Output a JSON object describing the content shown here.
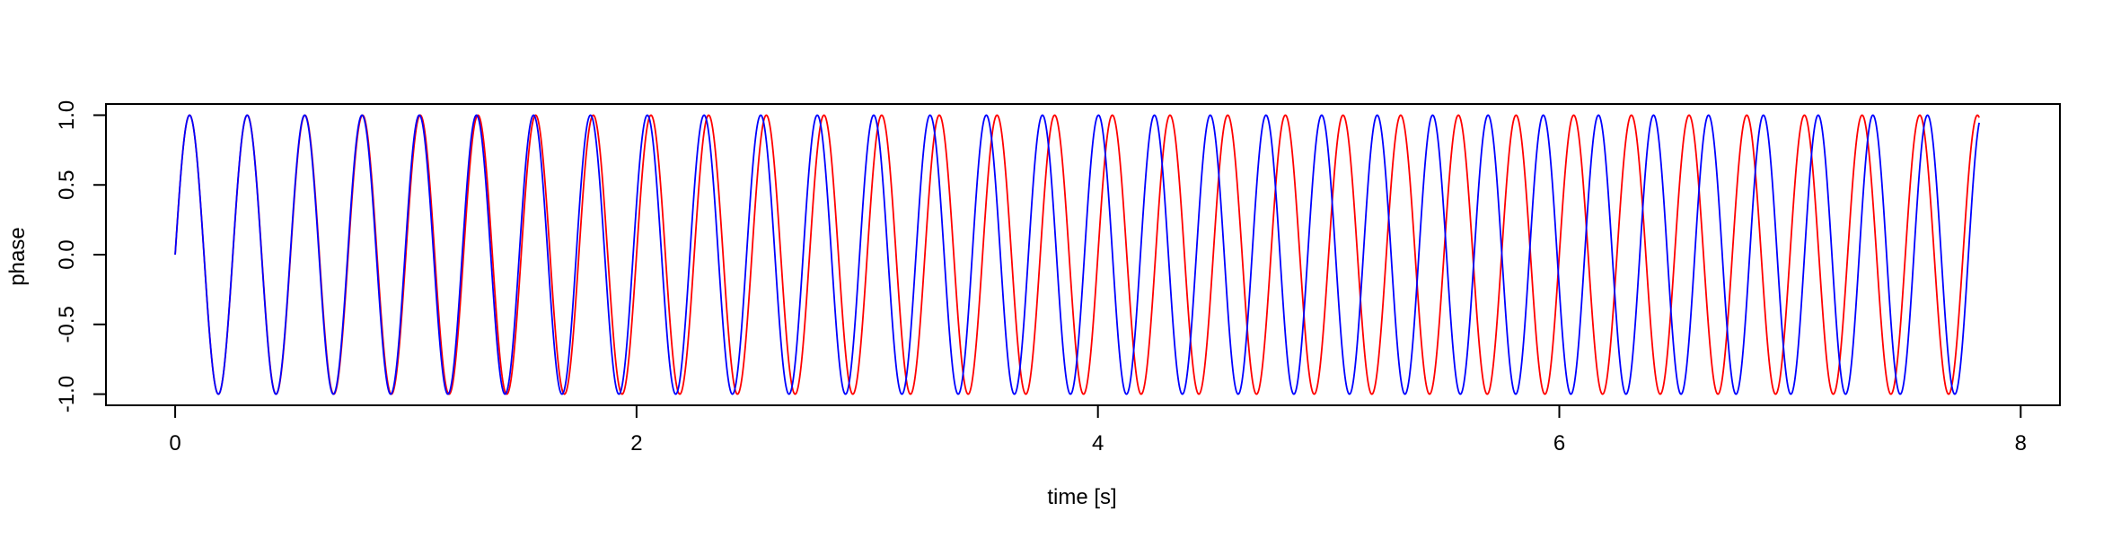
{
  "chart_data": {
    "type": "line",
    "title": "",
    "xlabel": "time [s]",
    "ylabel": "phase",
    "xlim": [
      -0.3,
      8.17
    ],
    "ylim": [
      -1.08,
      1.08
    ],
    "x_ticks": [
      0,
      2,
      4,
      6,
      8
    ],
    "x_tick_labels": [
      "0",
      "2",
      "4",
      "6",
      "8"
    ],
    "y_ticks": [
      -1.0,
      -0.5,
      0.0,
      0.5,
      1.0
    ],
    "y_tick_labels": [
      "-1.0",
      "-0.5",
      "0.0",
      "0.5",
      "1.0"
    ],
    "grid": false,
    "legend": "none",
    "x_range": [
      0,
      7.82
    ],
    "series": [
      {
        "color": "#ff0000",
        "frequency_hz": 4.0,
        "x_start": 0,
        "x_end": 7.82,
        "formula": "sin(2*pi*4.0*t)"
      },
      {
        "color": "#0000ff",
        "frequency_hz": 4.0,
        "chirp_rate": 0.03,
        "x_start": 0,
        "x_end": 7.82,
        "formula": "sin(2*pi*(4.0*t + 0.03*t^2/2))"
      }
    ]
  }
}
